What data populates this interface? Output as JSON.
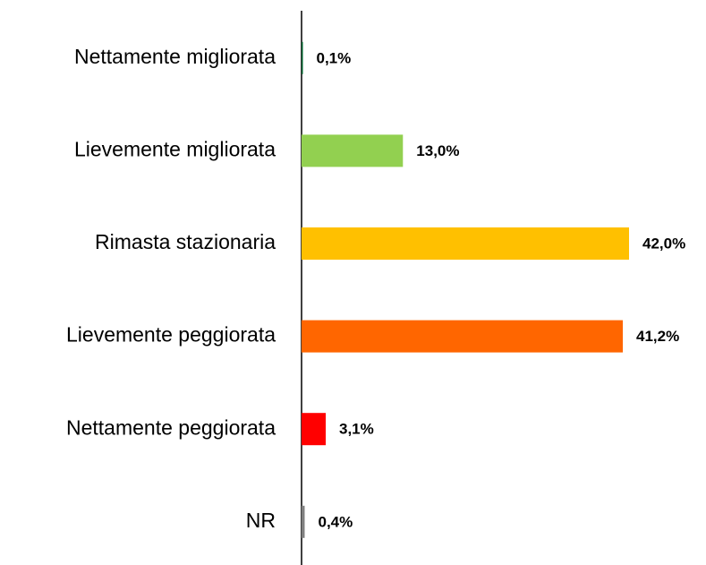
{
  "chart_data": {
    "type": "bar",
    "orientation": "horizontal",
    "categories": [
      "Nettamente migliorata",
      "Lievemente migliorata",
      "Rimasta stazionaria",
      "Lievemente peggiorata",
      "Nettamente peggiorata",
      "NR"
    ],
    "values": [
      0.1,
      13.0,
      42.0,
      41.2,
      3.1,
      0.4
    ],
    "value_labels": [
      "0,1%",
      "13,0%",
      "42,0%",
      "41,2%",
      "3,1%",
      "0,4%"
    ],
    "colors": [
      "#00602b",
      "#92d050",
      "#ffc000",
      "#ff6600",
      "#ff0000",
      "#808080"
    ]
  }
}
